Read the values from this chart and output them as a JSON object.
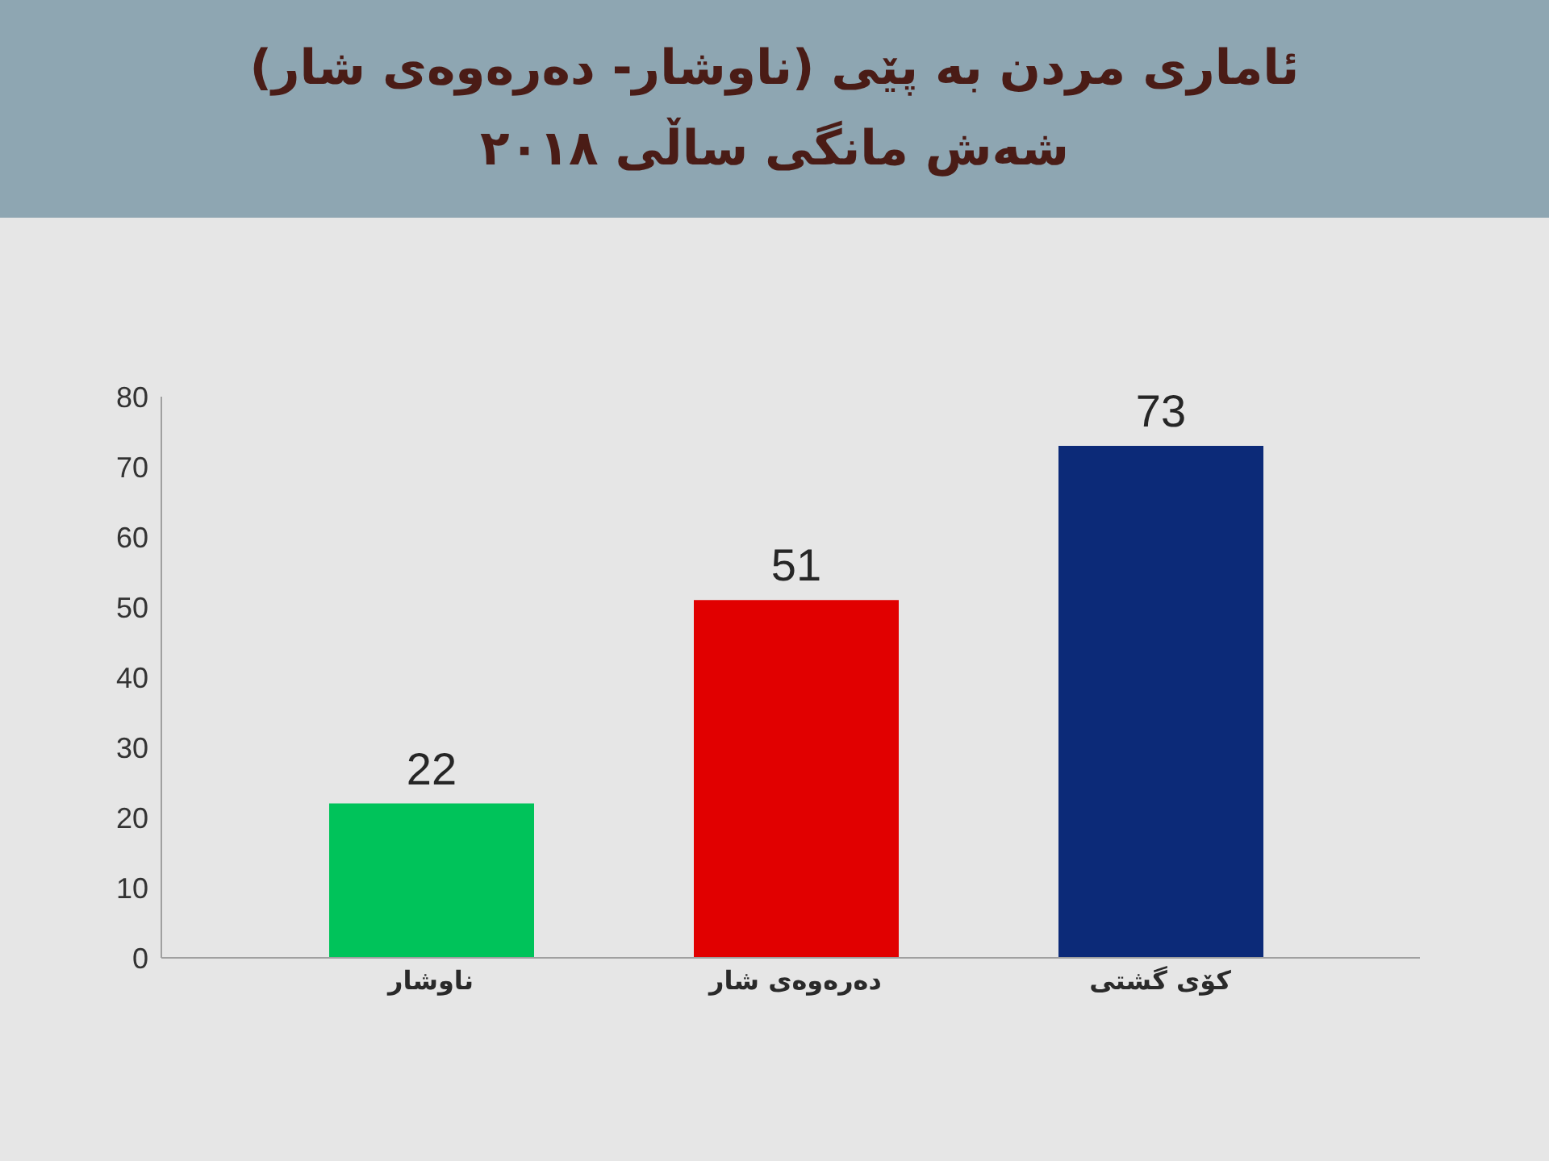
{
  "chart_data": {
    "type": "bar",
    "title": "ئاماری مردن بە پێی (ناوشار- دەرەوەی شار)",
    "subtitle": "شەش مانگی ساڵی ٢٠١٨",
    "categories": [
      "ناوشار",
      "دەرەوەی شار",
      "کۆی گشتی"
    ],
    "values": [
      22,
      51,
      73
    ],
    "colors": [
      "#00c35a",
      "#e10000",
      "#0c2a78"
    ],
    "ylim": [
      0,
      80
    ],
    "yticks": [
      0,
      10,
      20,
      30,
      40,
      50,
      60,
      70,
      80
    ],
    "data_labels": true
  }
}
